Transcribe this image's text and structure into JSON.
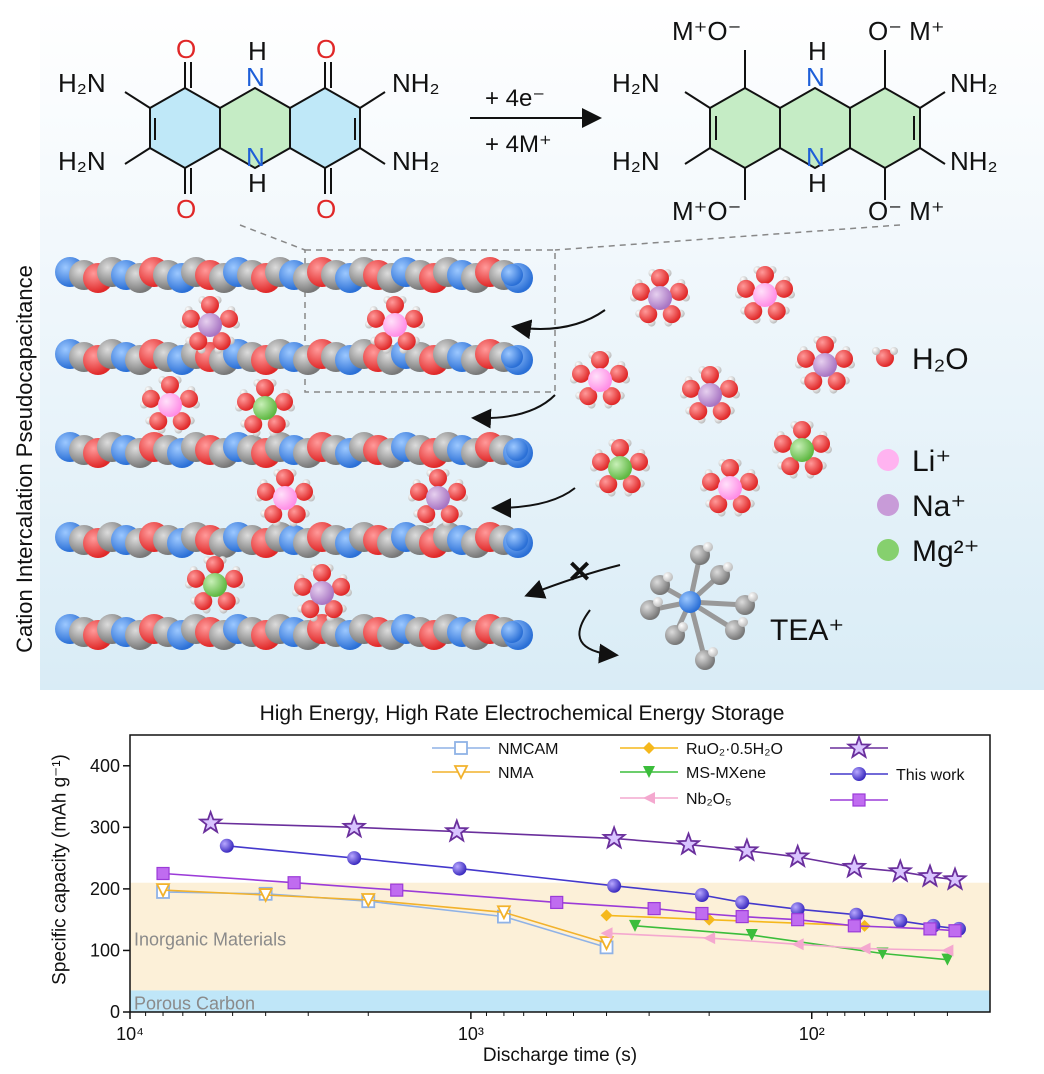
{
  "scheme": {
    "side_label": "Cation Intercalation Pseudocapacitance",
    "reaction_arrow_top": "+ 4e⁻",
    "reaction_arrow_bottom": "+ 4M⁺",
    "left_molecule": {
      "N_top": "H",
      "N_bottom": "H",
      "O": "O",
      "NH2_left_top": "H₂N",
      "NH2_left_bottom": "H₂N",
      "NH2_right_top": "NH₂",
      "NH2_right_bottom": "NH₂",
      "N": "N"
    },
    "right_molecule": {
      "MO_top_left": "M⁺O⁻",
      "MO_top_right": "O⁻ M⁺",
      "MO_bottom_left": "M⁺O⁻",
      "MO_bottom_right": "O⁻ M⁺",
      "N": "N",
      "H": "H"
    },
    "legend": [
      {
        "label": "H₂O",
        "color": "#ef4848"
      },
      {
        "label": "Li⁺",
        "color": "#ffb3f0"
      },
      {
        "label": "Na⁺",
        "color": "#c89bd8"
      },
      {
        "label": "Mg²⁺",
        "color": "#86d06e"
      }
    ],
    "tea_label": "TEA⁺",
    "blocked_mark": "✕"
  },
  "chart_data": {
    "type": "scatter",
    "title": "High Energy, High Rate Electrochemical Energy Storage",
    "xlabel": "Discharge time (s)",
    "ylabel": "Specific capacity (mAh g⁻¹)",
    "x_scale": "log",
    "x_reversed": true,
    "xlim": [
      10000,
      30
    ],
    "ylim": [
      0,
      450
    ],
    "x_ticks": [
      10000,
      1000,
      100
    ],
    "x_tick_labels": [
      "10⁴",
      "10³",
      "10²"
    ],
    "y_ticks": [
      0,
      100,
      200,
      300,
      400
    ],
    "regions": [
      {
        "label": "Inorganic Materials",
        "y_range": [
          35,
          210
        ],
        "color": "#fcf0d8"
      },
      {
        "label": "Porous Carbon",
        "y_range": [
          0,
          35
        ],
        "color": "#bfe6f8"
      }
    ],
    "series": [
      {
        "name": "NMCAM",
        "color": "#8fb2e6",
        "marker": "square-open",
        "x": [
          8000,
          4000,
          2000,
          800,
          400
        ],
        "y": [
          195,
          192,
          180,
          155,
          105
        ]
      },
      {
        "name": "NMA",
        "color": "#f2b22c",
        "marker": "triangle-down-open",
        "x": [
          8000,
          4000,
          2000,
          800,
          400
        ],
        "y": [
          198,
          190,
          182,
          162,
          112
        ]
      },
      {
        "name": "RuO₂·0.5H₂O",
        "color": "#f5b81c",
        "marker": "diamond",
        "x": [
          400,
          200,
          70
        ],
        "y": [
          157,
          150,
          140
        ]
      },
      {
        "name": "MS-MXene",
        "color": "#3bbd3b",
        "marker": "triangle-down",
        "x": [
          330,
          150,
          62,
          40
        ],
        "y": [
          140,
          125,
          95,
          85
        ]
      },
      {
        "name": "Nb₂O₅",
        "color": "#f4a8cf",
        "marker": "triangle-left",
        "x": [
          400,
          200,
          110,
          70,
          40
        ],
        "y": [
          128,
          120,
          110,
          103,
          100
        ]
      },
      {
        "name": "This work",
        "color": "#6a2f9c",
        "marker": "star",
        "x": [
          5800,
          2200,
          1100,
          380,
          230,
          155,
          110,
          75,
          55,
          45,
          38
        ],
        "y": [
          307,
          300,
          293,
          282,
          272,
          262,
          252,
          235,
          228,
          220,
          215
        ]
      },
      {
        "name": "This work",
        "color": "#4438cc",
        "marker": "sphere",
        "x": [
          5200,
          2200,
          1080,
          380,
          210,
          160,
          110,
          74,
          55,
          44,
          37
        ],
        "y": [
          270,
          250,
          233,
          205,
          190,
          178,
          167,
          158,
          148,
          140,
          135
        ]
      },
      {
        "name": "This work",
        "color": "#9b3bd8",
        "marker": "square",
        "x": [
          8000,
          3300,
          1650,
          560,
          290,
          210,
          160,
          110,
          75,
          45,
          38
        ],
        "y": [
          225,
          210,
          198,
          178,
          168,
          160,
          155,
          150,
          140,
          135,
          132
        ]
      }
    ],
    "legend_entries": [
      "NMCAM",
      "NMA",
      "RuO₂·0.5H₂O",
      "MS-MXene",
      "Nb₂O₅",
      "This work"
    ]
  }
}
